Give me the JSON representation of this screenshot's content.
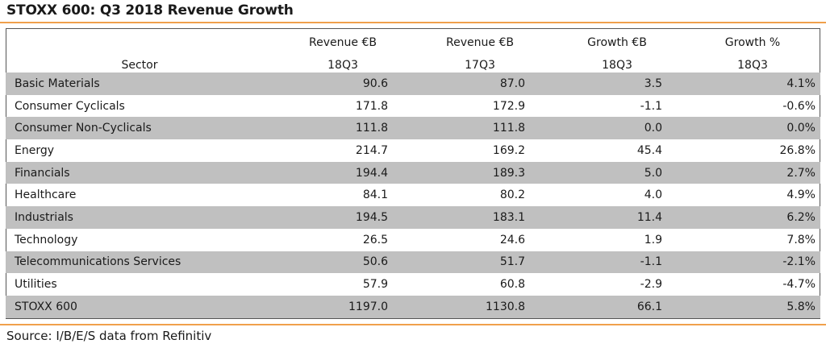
{
  "title": "STOXX 600: Q3 2018 Revenue Growth",
  "source": "Source: I/B/E/S data from Refinitiv",
  "colors": {
    "accent_rule": "#f0a04b",
    "row_shade": "#c0c0c0"
  },
  "chart_data": {
    "type": "table",
    "title": "STOXX 600: Q3 2018 Revenue Growth",
    "columns": [
      {
        "line1": "",
        "line2": "Sector"
      },
      {
        "line1": "Revenue €B",
        "line2": "18Q3"
      },
      {
        "line1": "Revenue €B",
        "line2": "17Q3"
      },
      {
        "line1": "Growth €B",
        "line2": "18Q3"
      },
      {
        "line1": "Growth %",
        "line2": "18Q3"
      }
    ],
    "rows": [
      {
        "sector": "Basic Materials",
        "rev_18q3": "90.6",
        "rev_17q3": "87.0",
        "growth_eb": "3.5",
        "growth_pct": "4.1%"
      },
      {
        "sector": "Consumer Cyclicals",
        "rev_18q3": "171.8",
        "rev_17q3": "172.9",
        "growth_eb": "-1.1",
        "growth_pct": "-0.6%"
      },
      {
        "sector": "Consumer Non-Cyclicals",
        "rev_18q3": "111.8",
        "rev_17q3": "111.8",
        "growth_eb": "0.0",
        "growth_pct": "0.0%"
      },
      {
        "sector": "Energy",
        "rev_18q3": "214.7",
        "rev_17q3": "169.2",
        "growth_eb": "45.4",
        "growth_pct": "26.8%"
      },
      {
        "sector": "Financials",
        "rev_18q3": "194.4",
        "rev_17q3": "189.3",
        "growth_eb": "5.0",
        "growth_pct": "2.7%"
      },
      {
        "sector": "Healthcare",
        "rev_18q3": "84.1",
        "rev_17q3": "80.2",
        "growth_eb": "4.0",
        "growth_pct": "4.9%"
      },
      {
        "sector": "Industrials",
        "rev_18q3": "194.5",
        "rev_17q3": "183.1",
        "growth_eb": "11.4",
        "growth_pct": "6.2%"
      },
      {
        "sector": "Technology",
        "rev_18q3": "26.5",
        "rev_17q3": "24.6",
        "growth_eb": "1.9",
        "growth_pct": "7.8%"
      },
      {
        "sector": "Telecommunications Services",
        "rev_18q3": "50.6",
        "rev_17q3": "51.7",
        "growth_eb": "-1.1",
        "growth_pct": "-2.1%"
      },
      {
        "sector": "Utilities",
        "rev_18q3": "57.9",
        "rev_17q3": "60.8",
        "growth_eb": "-2.9",
        "growth_pct": "-4.7%"
      }
    ],
    "total": {
      "sector": "STOXX 600",
      "rev_18q3": "1197.0",
      "rev_17q3": "1130.8",
      "growth_eb": "66.1",
      "growth_pct": "5.8%"
    }
  }
}
